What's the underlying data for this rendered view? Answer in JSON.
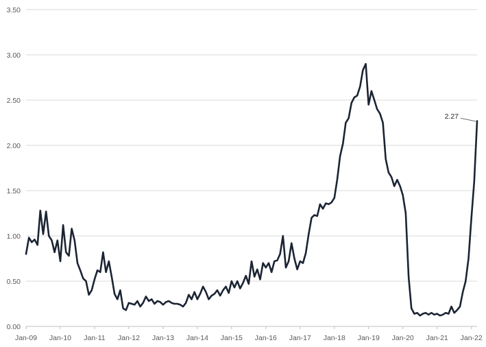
{
  "chart_data": {
    "type": "line",
    "title": "",
    "xlabel": "",
    "ylabel": "",
    "ylim": [
      0,
      3.5
    ],
    "grid": "horizontal",
    "y_ticks": [
      "0.00",
      "0.50",
      "1.00",
      "1.50",
      "2.00",
      "2.50",
      "3.00",
      "3.50"
    ],
    "y_tick_values": [
      0,
      0.5,
      1,
      1.5,
      2,
      2.5,
      3,
      3.5
    ],
    "x_ticks": [
      "Jan-09",
      "Jan-10",
      "Jan-11",
      "Jan-12",
      "Jan-13",
      "Jan-14",
      "Jan-15",
      "Jan-16",
      "Jan-17",
      "Jan-18",
      "Jan-19",
      "Jan-20",
      "Jan-21",
      "Jan-22"
    ],
    "x_tick_values": [
      "2009-01",
      "2010-01",
      "2011-01",
      "2012-01",
      "2013-01",
      "2014-01",
      "2015-01",
      "2016-01",
      "2017-01",
      "2018-01",
      "2019-01",
      "2020-01",
      "2021-01",
      "2022-01"
    ],
    "xlim": [
      "2009-01",
      "2022-03"
    ],
    "annotation": {
      "text": "2.27",
      "x": "2022-03",
      "y": 2.27
    },
    "series": [
      {
        "color": "#1b2433",
        "x": [
          "2009-01",
          "2009-02",
          "2009-03",
          "2009-04",
          "2009-05",
          "2009-06",
          "2009-07",
          "2009-08",
          "2009-09",
          "2009-10",
          "2009-11",
          "2009-12",
          "2010-01",
          "2010-02",
          "2010-03",
          "2010-04",
          "2010-05",
          "2010-06",
          "2010-07",
          "2010-08",
          "2010-09",
          "2010-10",
          "2010-11",
          "2010-12",
          "2011-01",
          "2011-02",
          "2011-03",
          "2011-04",
          "2011-05",
          "2011-06",
          "2011-07",
          "2011-08",
          "2011-09",
          "2011-10",
          "2011-11",
          "2011-12",
          "2012-01",
          "2012-02",
          "2012-03",
          "2012-04",
          "2012-05",
          "2012-06",
          "2012-07",
          "2012-08",
          "2012-09",
          "2012-10",
          "2012-11",
          "2012-12",
          "2013-01",
          "2013-02",
          "2013-03",
          "2013-04",
          "2013-05",
          "2013-06",
          "2013-07",
          "2013-08",
          "2013-09",
          "2013-10",
          "2013-11",
          "2013-12",
          "2014-01",
          "2014-02",
          "2014-03",
          "2014-04",
          "2014-05",
          "2014-06",
          "2014-07",
          "2014-08",
          "2014-09",
          "2014-10",
          "2014-11",
          "2014-12",
          "2015-01",
          "2015-02",
          "2015-03",
          "2015-04",
          "2015-05",
          "2015-06",
          "2015-07",
          "2015-08",
          "2015-09",
          "2015-10",
          "2015-11",
          "2015-12",
          "2016-01",
          "2016-02",
          "2016-03",
          "2016-04",
          "2016-05",
          "2016-06",
          "2016-07",
          "2016-08",
          "2016-09",
          "2016-10",
          "2016-11",
          "2016-12",
          "2017-01",
          "2017-02",
          "2017-03",
          "2017-04",
          "2017-05",
          "2017-06",
          "2017-07",
          "2017-08",
          "2017-09",
          "2017-10",
          "2017-11",
          "2017-12",
          "2018-01",
          "2018-02",
          "2018-03",
          "2018-04",
          "2018-05",
          "2018-06",
          "2018-07",
          "2018-08",
          "2018-09",
          "2018-10",
          "2018-11",
          "2018-12",
          "2019-01",
          "2019-02",
          "2019-03",
          "2019-04",
          "2019-05",
          "2019-06",
          "2019-07",
          "2019-08",
          "2019-09",
          "2019-10",
          "2019-11",
          "2019-12",
          "2020-01",
          "2020-02",
          "2020-03",
          "2020-04",
          "2020-05",
          "2020-06",
          "2020-07",
          "2020-08",
          "2020-09",
          "2020-10",
          "2020-11",
          "2020-12",
          "2021-01",
          "2021-02",
          "2021-03",
          "2021-04",
          "2021-05",
          "2021-06",
          "2021-07",
          "2021-08",
          "2021-09",
          "2021-10",
          "2021-11",
          "2021-12",
          "2022-01",
          "2022-02",
          "2022-03"
        ],
        "values": [
          0.8,
          0.98,
          0.93,
          0.96,
          0.9,
          1.28,
          1.02,
          1.27,
          1.0,
          0.95,
          0.82,
          0.95,
          0.72,
          1.12,
          0.82,
          0.78,
          1.08,
          0.95,
          0.7,
          0.62,
          0.53,
          0.5,
          0.35,
          0.4,
          0.52,
          0.62,
          0.6,
          0.82,
          0.6,
          0.72,
          0.55,
          0.36,
          0.3,
          0.4,
          0.2,
          0.18,
          0.26,
          0.25,
          0.24,
          0.28,
          0.22,
          0.26,
          0.33,
          0.28,
          0.3,
          0.25,
          0.28,
          0.27,
          0.24,
          0.27,
          0.28,
          0.26,
          0.25,
          0.25,
          0.24,
          0.22,
          0.26,
          0.35,
          0.3,
          0.38,
          0.3,
          0.36,
          0.44,
          0.38,
          0.3,
          0.34,
          0.36,
          0.4,
          0.34,
          0.4,
          0.44,
          0.37,
          0.5,
          0.43,
          0.5,
          0.42,
          0.48,
          0.56,
          0.47,
          0.72,
          0.55,
          0.63,
          0.52,
          0.7,
          0.65,
          0.7,
          0.6,
          0.72,
          0.73,
          0.8,
          1.0,
          0.65,
          0.72,
          0.92,
          0.75,
          0.63,
          0.72,
          0.7,
          0.81,
          1.02,
          1.2,
          1.23,
          1.22,
          1.35,
          1.3,
          1.36,
          1.35,
          1.37,
          1.42,
          1.62,
          1.88,
          2.02,
          2.25,
          2.3,
          2.47,
          2.53,
          2.55,
          2.65,
          2.83,
          2.9,
          2.45,
          2.6,
          2.5,
          2.4,
          2.35,
          2.25,
          1.85,
          1.7,
          1.65,
          1.55,
          1.62,
          1.55,
          1.45,
          1.25,
          0.55,
          0.2,
          0.14,
          0.15,
          0.12,
          0.14,
          0.15,
          0.13,
          0.15,
          0.13,
          0.14,
          0.12,
          0.13,
          0.15,
          0.14,
          0.22,
          0.15,
          0.18,
          0.22,
          0.38,
          0.5,
          0.75,
          1.2,
          1.6,
          2.27
        ]
      }
    ]
  }
}
